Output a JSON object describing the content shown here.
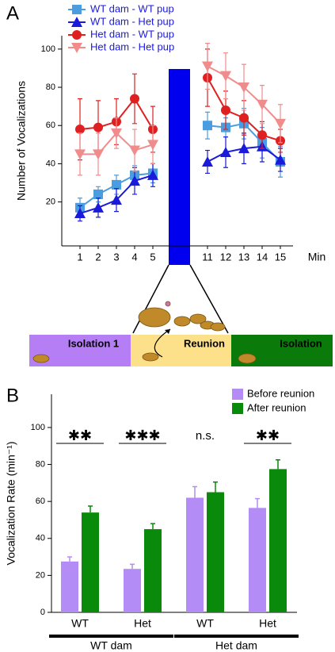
{
  "chart_data": [
    {
      "type": "line",
      "panel_label": "A",
      "y_label": "Number of Vocalizations",
      "x_label": "Min",
      "categories": [
        "1",
        "2",
        "3",
        "4",
        "5",
        "11",
        "12",
        "13",
        "14",
        "15"
      ],
      "ylim": [
        -3,
        107
      ],
      "yticks": [
        20,
        40,
        60,
        80,
        100
      ],
      "series": [
        {
          "name": "WT dam - WT pup",
          "color": "#4a9de0",
          "marker": "square",
          "values": [
            17,
            24,
            29,
            34,
            35,
            60,
            59,
            61,
            51,
            41
          ],
          "errors": [
            5,
            4,
            5,
            5,
            5,
            7,
            5,
            8,
            8,
            8
          ]
        },
        {
          "name": "WT dam - Het pup",
          "color": "#1a1adc",
          "marker": "triangle-up",
          "values": [
            14,
            17,
            21,
            31,
            34,
            41,
            46,
            48,
            49,
            42
          ],
          "errors": [
            4,
            5,
            6,
            7,
            6,
            6,
            8,
            8,
            8,
            6
          ]
        },
        {
          "name": "Het dam - WT pup",
          "color": "#e02020",
          "marker": "circle",
          "values": [
            58,
            59,
            62,
            74,
            58,
            85,
            68,
            64,
            55,
            52
          ],
          "errors": [
            16,
            14,
            12,
            13,
            12,
            15,
            10,
            9,
            7,
            6
          ]
        },
        {
          "name": "Het dam - Het pup",
          "color": "#f08c8c",
          "marker": "triangle-down",
          "values": [
            45,
            45,
            56,
            47,
            50,
            91,
            86,
            80,
            71,
            61
          ],
          "errors": [
            11,
            11,
            8,
            11,
            10,
            12,
            12,
            12,
            10,
            10
          ]
        }
      ]
    },
    {
      "type": "bar",
      "panel_label": "B",
      "y_label": "Vocalization Rate (min⁻¹)",
      "categories": [
        "WT",
        "Het",
        "WT",
        "Het"
      ],
      "groups": [
        "WT dam",
        "Het dam"
      ],
      "significance": [
        "✱✱",
        "✱✱✱",
        "n.s.",
        "✱✱"
      ],
      "significance_underlined": [
        true,
        true,
        false,
        true
      ],
      "ylim": [
        0,
        118
      ],
      "yticks": [
        0,
        20,
        40,
        60,
        80,
        100
      ],
      "series": [
        {
          "name": "Before reunion",
          "color": "#b48cf5",
          "values": [
            27.5,
            23.5,
            62,
            56.5
          ],
          "errors": [
            2.5,
            2.5,
            6,
            5
          ]
        },
        {
          "name": "After reunion",
          "color": "#0a8a0a",
          "values": [
            54,
            45,
            65,
            77.5
          ],
          "errors": [
            3.5,
            3,
            5.5,
            5
          ]
        }
      ]
    }
  ],
  "diagram": {
    "phases": [
      "Isolation 1",
      "Reunion",
      "Isolation"
    ]
  }
}
